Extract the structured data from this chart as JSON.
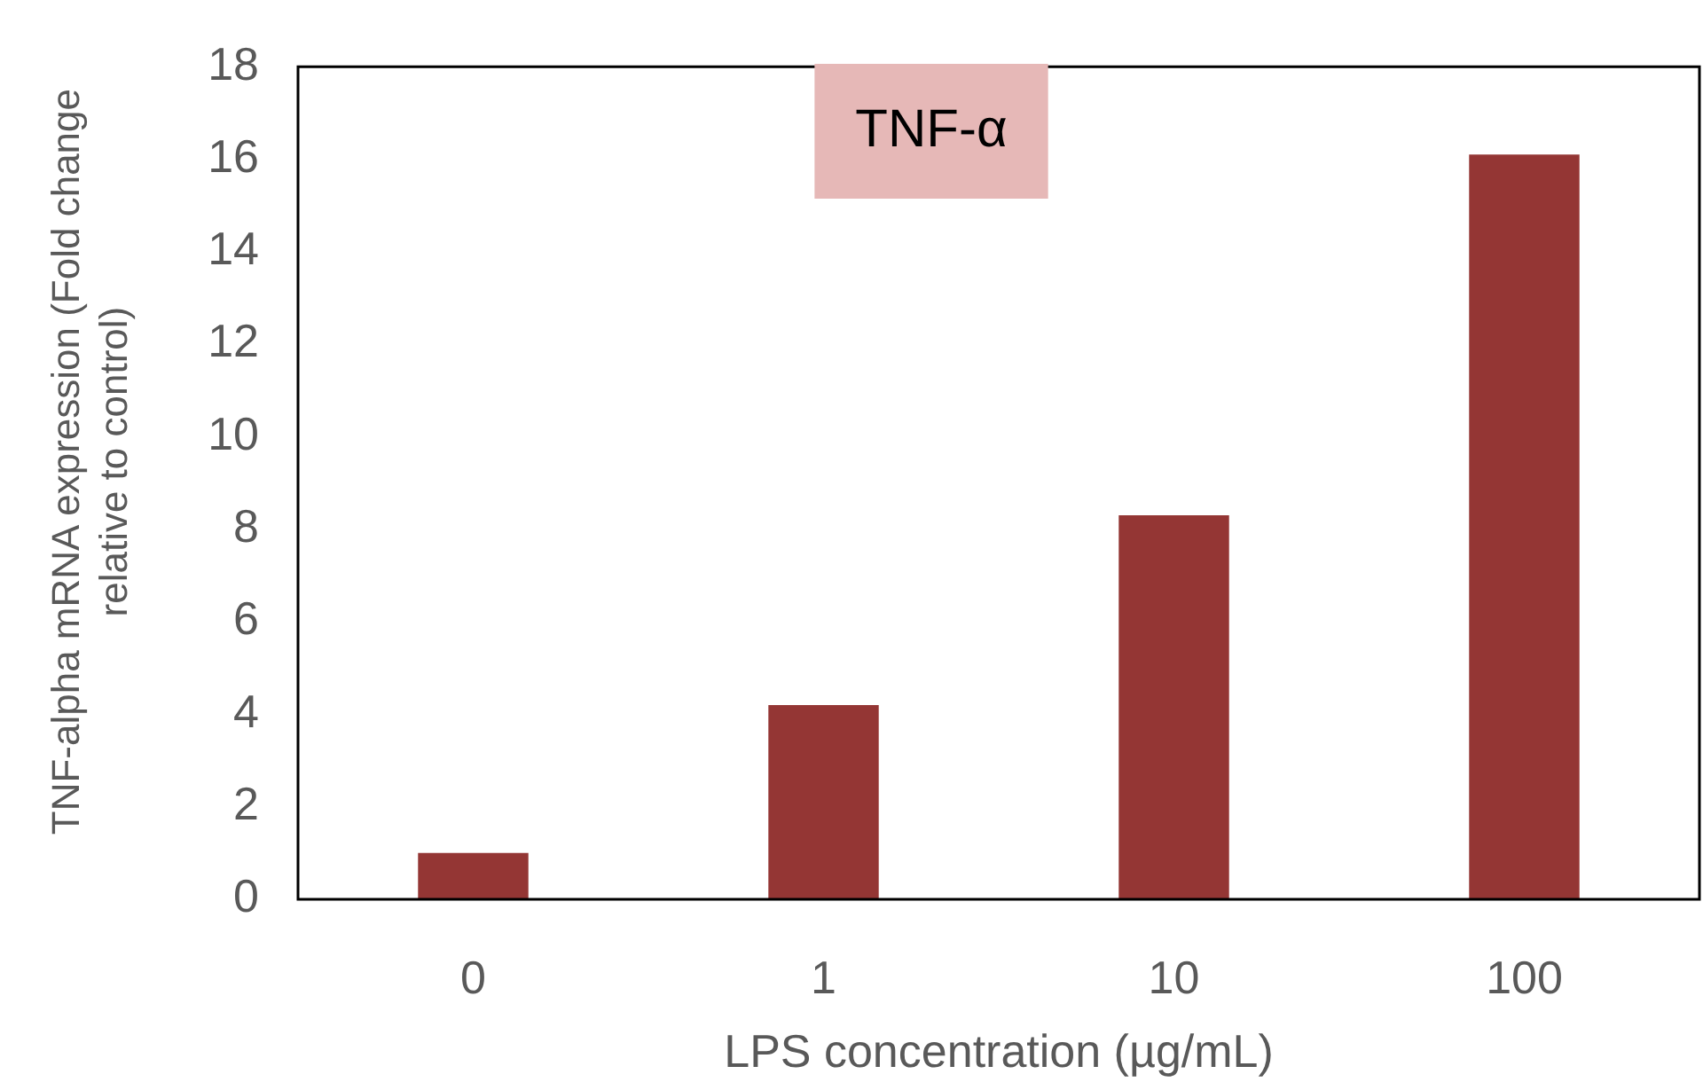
{
  "chart_data": {
    "type": "bar",
    "title": "TNF-α",
    "xlabel": "LPS concentration (µg/mL)",
    "ylabel": "TNF-alpha mRNA expression (Fold change relative to control)",
    "categories": [
      "0",
      "1",
      "10",
      "100"
    ],
    "values": [
      1.0,
      4.2,
      8.3,
      16.1
    ],
    "color": "#943634",
    "ylim": [
      0,
      18
    ],
    "yticks": [
      0,
      2,
      4,
      6,
      8,
      10,
      12,
      14,
      16,
      18
    ],
    "grid": false,
    "legend": false
  }
}
